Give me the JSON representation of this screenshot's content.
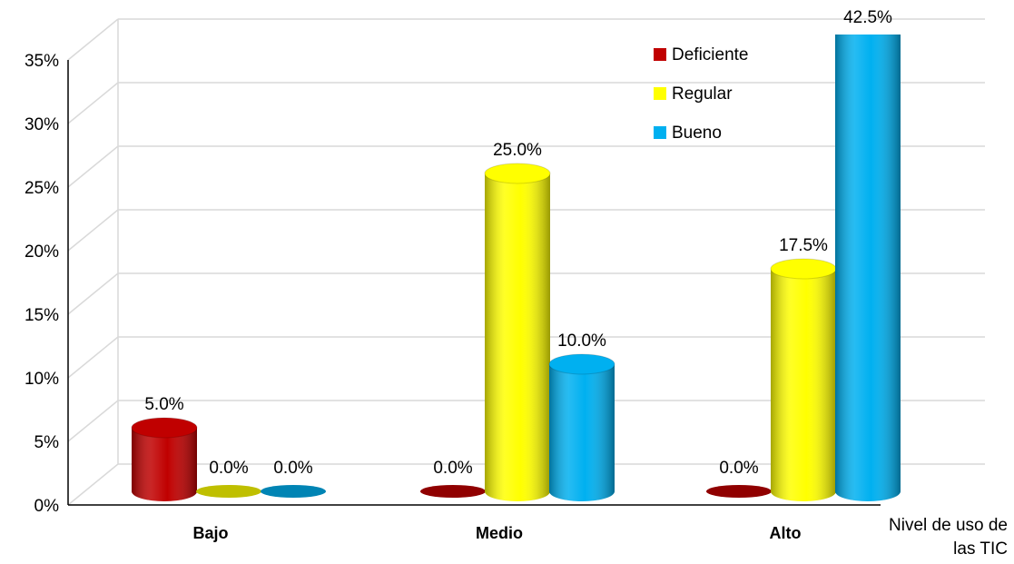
{
  "chart_data": {
    "type": "bar3d",
    "x_label": "Nivel de uso de las TIC",
    "categories": [
      "Bajo",
      "Medio",
      "Alto"
    ],
    "series": [
      {
        "name": "Deficiente",
        "color": "#c00000",
        "values": [
          5,
          0,
          0
        ],
        "value_labels": [
          "5.0%",
          "0.0%",
          "0.0%"
        ]
      },
      {
        "name": "Regular",
        "color": "#ffff00",
        "values": [
          0,
          25,
          17.5
        ],
        "value_labels": [
          "0.0%",
          "25.0%",
          "17.5%"
        ]
      },
      {
        "name": "Bueno",
        "color": "#00b0f0",
        "values": [
          0,
          10,
          42.5
        ],
        "value_labels": [
          "0.0%",
          "10.0%",
          "42.5%"
        ]
      }
    ],
    "ylim": [
      0,
      35
    ],
    "yticks": [
      {
        "value": 0,
        "label": "0%"
      },
      {
        "value": 5,
        "label": "5%"
      },
      {
        "value": 10,
        "label": "10%"
      },
      {
        "value": 15,
        "label": "15%"
      },
      {
        "value": 20,
        "label": "20%"
      },
      {
        "value": 25,
        "label": "25%"
      },
      {
        "value": 30,
        "label": "30%"
      },
      {
        "value": 35,
        "label": "35%"
      }
    ],
    "grid": true,
    "legend": "top-right"
  }
}
